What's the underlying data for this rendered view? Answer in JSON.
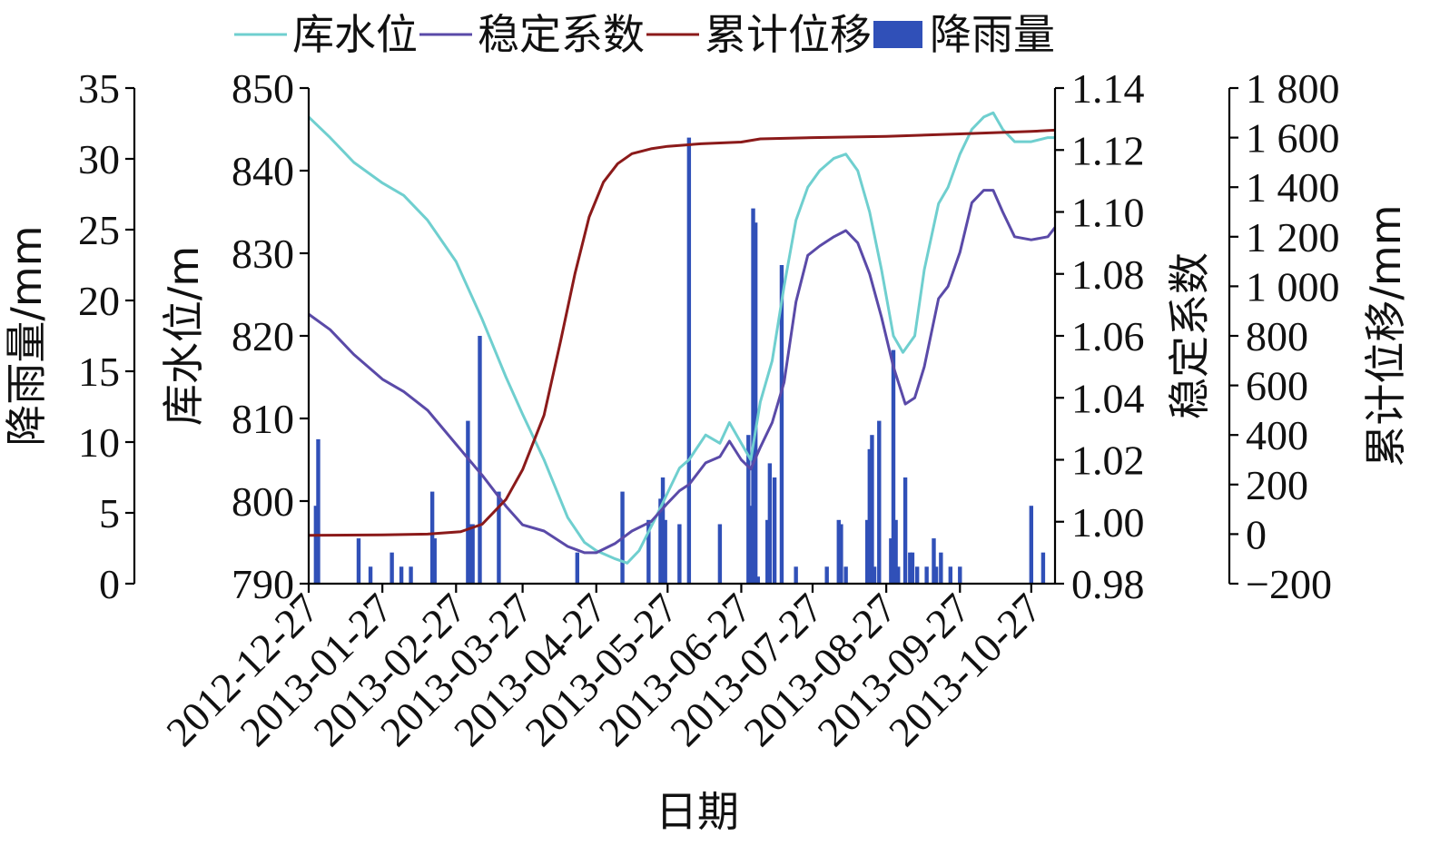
{
  "chart_data": {
    "type": "line",
    "xlabel": "日期",
    "x_ticks": [
      "2012-12-27",
      "2013-01-27",
      "2013-02-27",
      "2013-03-27",
      "2013-04-27",
      "2013-05-27",
      "2013-06-27",
      "2013-07-27",
      "2013-08-27",
      "2013-09-27",
      "2013-10-27"
    ],
    "x_range": [
      "2012-12-27",
      "2013-11-06"
    ],
    "legend_position": "top",
    "axes": {
      "rain": {
        "label": "降雨量/mm",
        "range": [
          0,
          35
        ],
        "ticks": [
          "0",
          "5",
          "10",
          "15",
          "20",
          "25",
          "30",
          "35"
        ],
        "tick_values": [
          0,
          5,
          10,
          15,
          20,
          25,
          30,
          35
        ]
      },
      "water": {
        "label": "库水位/m",
        "range": [
          790,
          850
        ],
        "ticks": [
          "790",
          "800",
          "810",
          "820",
          "830",
          "840",
          "850"
        ],
        "tick_values": [
          790,
          800,
          810,
          820,
          830,
          840,
          850
        ]
      },
      "stability": {
        "label": "稳定系数",
        "range": [
          0.98,
          1.14
        ],
        "ticks": [
          "0.98",
          "1.00",
          "1.02",
          "1.04",
          "1.06",
          "1.08",
          "1.10",
          "1.12",
          "1.14"
        ],
        "tick_values": [
          0.98,
          1.0,
          1.02,
          1.04,
          1.06,
          1.08,
          1.1,
          1.12,
          1.14
        ]
      },
      "displacement": {
        "label": "累计位移/mm",
        "range": [
          -200,
          1800
        ],
        "ticks": [
          "−200",
          "0",
          "200",
          "400",
          "600",
          "800",
          "1 000",
          "1 200",
          "1 400",
          "1 600",
          "1 800"
        ],
        "tick_values": [
          -200,
          0,
          200,
          400,
          600,
          800,
          1000,
          1200,
          1400,
          1600,
          1800
        ]
      }
    },
    "series": [
      {
        "name": "库水位",
        "axis": "water",
        "type": "line",
        "color": "#6fcfcf",
        "points": [
          [
            "2012-12-27",
            846.5
          ],
          [
            "2013-01-05",
            844
          ],
          [
            "2013-01-15",
            841
          ],
          [
            "2013-01-27",
            838.5
          ],
          [
            "2013-02-05",
            837
          ],
          [
            "2013-02-15",
            834
          ],
          [
            "2013-02-27",
            829
          ],
          [
            "2013-03-10",
            822
          ],
          [
            "2013-03-20",
            815
          ],
          [
            "2013-03-27",
            810.5
          ],
          [
            "2013-04-05",
            805
          ],
          [
            "2013-04-15",
            798
          ],
          [
            "2013-04-22",
            795
          ],
          [
            "2013-04-27",
            794
          ],
          [
            "2013-05-05",
            793
          ],
          [
            "2013-05-10",
            792.5
          ],
          [
            "2013-05-15",
            794
          ],
          [
            "2013-05-22",
            798
          ],
          [
            "2013-05-27",
            801
          ],
          [
            "2013-06-01",
            804
          ],
          [
            "2013-06-05",
            805
          ],
          [
            "2013-06-12",
            808
          ],
          [
            "2013-06-18",
            807
          ],
          [
            "2013-06-22",
            809.5
          ],
          [
            "2013-06-27",
            807
          ],
          [
            "2013-07-01",
            805
          ],
          [
            "2013-07-05",
            812
          ],
          [
            "2013-07-10",
            817
          ],
          [
            "2013-07-15",
            826
          ],
          [
            "2013-07-20",
            834
          ],
          [
            "2013-07-25",
            838
          ],
          [
            "2013-07-30",
            840
          ],
          [
            "2013-08-05",
            841.5
          ],
          [
            "2013-08-10",
            842
          ],
          [
            "2013-08-15",
            840
          ],
          [
            "2013-08-20",
            835
          ],
          [
            "2013-08-25",
            828
          ],
          [
            "2013-08-30",
            820
          ],
          [
            "2013-09-03",
            818
          ],
          [
            "2013-09-08",
            820
          ],
          [
            "2013-09-12",
            828
          ],
          [
            "2013-09-18",
            836
          ],
          [
            "2013-09-22",
            838
          ],
          [
            "2013-09-27",
            842
          ],
          [
            "2013-10-02",
            845
          ],
          [
            "2013-10-07",
            846.5
          ],
          [
            "2013-10-11",
            847
          ],
          [
            "2013-10-15",
            845
          ],
          [
            "2013-10-20",
            843.5
          ],
          [
            "2013-10-27",
            843.5
          ],
          [
            "2013-11-03",
            844
          ],
          [
            "2013-11-06",
            844
          ]
        ]
      },
      {
        "name": "稳定系数",
        "axis": "stability",
        "type": "line",
        "color": "#5a4aa8",
        "points": [
          [
            "2012-12-27",
            1.067
          ],
          [
            "2013-01-05",
            1.062
          ],
          [
            "2013-01-15",
            1.054
          ],
          [
            "2013-01-27",
            1.046
          ],
          [
            "2013-02-05",
            1.042
          ],
          [
            "2013-02-15",
            1.036
          ],
          [
            "2013-02-27",
            1.025
          ],
          [
            "2013-03-10",
            1.015
          ],
          [
            "2013-03-20",
            1.005
          ],
          [
            "2013-03-27",
            0.999
          ],
          [
            "2013-04-05",
            0.997
          ],
          [
            "2013-04-15",
            0.992
          ],
          [
            "2013-04-22",
            0.99
          ],
          [
            "2013-04-27",
            0.99
          ],
          [
            "2013-05-05",
            0.993
          ],
          [
            "2013-05-12",
            0.997
          ],
          [
            "2013-05-20",
            1.0
          ],
          [
            "2013-05-27",
            1.006
          ],
          [
            "2013-06-01",
            1.01
          ],
          [
            "2013-06-05",
            1.012
          ],
          [
            "2013-06-12",
            1.019
          ],
          [
            "2013-06-18",
            1.021
          ],
          [
            "2013-06-22",
            1.026
          ],
          [
            "2013-06-27",
            1.02
          ],
          [
            "2013-07-01",
            1.017
          ],
          [
            "2013-07-05",
            1.024
          ],
          [
            "2013-07-10",
            1.032
          ],
          [
            "2013-07-15",
            1.045
          ],
          [
            "2013-07-20",
            1.071
          ],
          [
            "2013-07-25",
            1.086
          ],
          [
            "2013-07-30",
            1.089
          ],
          [
            "2013-08-05",
            1.092
          ],
          [
            "2013-08-10",
            1.094
          ],
          [
            "2013-08-15",
            1.09
          ],
          [
            "2013-08-20",
            1.08
          ],
          [
            "2013-08-25",
            1.066
          ],
          [
            "2013-08-30",
            1.05
          ],
          [
            "2013-09-04",
            1.038
          ],
          [
            "2013-09-08",
            1.04
          ],
          [
            "2013-09-12",
            1.05
          ],
          [
            "2013-09-18",
            1.072
          ],
          [
            "2013-09-22",
            1.076
          ],
          [
            "2013-09-27",
            1.087
          ],
          [
            "2013-10-02",
            1.103
          ],
          [
            "2013-10-07",
            1.107
          ],
          [
            "2013-10-11",
            1.107
          ],
          [
            "2013-10-15",
            1.1
          ],
          [
            "2013-10-20",
            1.092
          ],
          [
            "2013-10-27",
            1.091
          ],
          [
            "2013-11-03",
            1.092
          ],
          [
            "2013-11-06",
            1.095
          ]
        ]
      },
      {
        "name": "累计位移",
        "axis": "displacement",
        "type": "line",
        "color": "#8b1a1a",
        "points": [
          [
            "2012-12-27",
            -5
          ],
          [
            "2013-01-27",
            -3
          ],
          [
            "2013-02-15",
            0
          ],
          [
            "2013-03-01",
            10
          ],
          [
            "2013-03-10",
            40
          ],
          [
            "2013-03-20",
            140
          ],
          [
            "2013-03-27",
            260
          ],
          [
            "2013-04-05",
            480
          ],
          [
            "2013-04-12",
            780
          ],
          [
            "2013-04-18",
            1050
          ],
          [
            "2013-04-24",
            1280
          ],
          [
            "2013-04-30",
            1420
          ],
          [
            "2013-05-06",
            1495
          ],
          [
            "2013-05-12",
            1535
          ],
          [
            "2013-05-20",
            1555
          ],
          [
            "2013-05-27",
            1565
          ],
          [
            "2013-06-10",
            1575
          ],
          [
            "2013-06-27",
            1582
          ],
          [
            "2013-07-05",
            1595
          ],
          [
            "2013-07-27",
            1600
          ],
          [
            "2013-08-27",
            1605
          ],
          [
            "2013-09-27",
            1615
          ],
          [
            "2013-10-27",
            1625
          ],
          [
            "2013-11-06",
            1630
          ]
        ]
      },
      {
        "name": "降雨量",
        "axis": "rain",
        "type": "bar",
        "color": "#3050b8",
        "points": [
          [
            "2012-12-30",
            5.5
          ],
          [
            "2012-12-31",
            10.2
          ],
          [
            "2013-01-17",
            3.2
          ],
          [
            "2013-01-22",
            1.2
          ],
          [
            "2013-01-31",
            2.2
          ],
          [
            "2013-02-04",
            1.2
          ],
          [
            "2013-02-08",
            1.2
          ],
          [
            "2013-02-17",
            6.5
          ],
          [
            "2013-02-18",
            3.2
          ],
          [
            "2013-03-04",
            11.5
          ],
          [
            "2013-03-05",
            4.2
          ],
          [
            "2013-03-06",
            4.2
          ],
          [
            "2013-03-09",
            17.5
          ],
          [
            "2013-03-17",
            6.5
          ],
          [
            "2013-04-19",
            2.2
          ],
          [
            "2013-05-08",
            6.5
          ],
          [
            "2013-05-19",
            4.5
          ],
          [
            "2013-05-24",
            6.0
          ],
          [
            "2013-05-25",
            7.5
          ],
          [
            "2013-05-26",
            4.5
          ],
          [
            "2013-06-01",
            4.2
          ],
          [
            "2013-06-05",
            31.5
          ],
          [
            "2013-06-18",
            4.2
          ],
          [
            "2013-06-30",
            10.5
          ],
          [
            "2013-07-01",
            5.5
          ],
          [
            "2013-07-02",
            26.5
          ],
          [
            "2013-07-03",
            25.5
          ],
          [
            "2013-07-04",
            0.5
          ],
          [
            "2013-07-08",
            4.5
          ],
          [
            "2013-07-09",
            8.5
          ],
          [
            "2013-07-11",
            7.5
          ],
          [
            "2013-07-14",
            22.5
          ],
          [
            "2013-07-20",
            1.2
          ],
          [
            "2013-08-02",
            1.2
          ],
          [
            "2013-08-07",
            4.5
          ],
          [
            "2013-08-08",
            4.2
          ],
          [
            "2013-08-10",
            1.2
          ],
          [
            "2013-08-19",
            4.5
          ],
          [
            "2013-08-20",
            9.5
          ],
          [
            "2013-08-21",
            10.5
          ],
          [
            "2013-08-22",
            1.2
          ],
          [
            "2013-08-24",
            11.5
          ],
          [
            "2013-08-29",
            3.2
          ],
          [
            "2013-08-30",
            16.5
          ],
          [
            "2013-08-31",
            4.5
          ],
          [
            "2013-09-01",
            1.2
          ],
          [
            "2013-09-04",
            7.5
          ],
          [
            "2013-09-06",
            2.2
          ],
          [
            "2013-09-07",
            2.2
          ],
          [
            "2013-09-09",
            1.2
          ],
          [
            "2013-09-13",
            1.2
          ],
          [
            "2013-09-16",
            3.2
          ],
          [
            "2013-09-17",
            1.2
          ],
          [
            "2013-09-19",
            2.2
          ],
          [
            "2013-09-23",
            1.2
          ],
          [
            "2013-09-27",
            1.2
          ],
          [
            "2013-10-27",
            5.5
          ],
          [
            "2013-11-01",
            2.2
          ]
        ]
      }
    ]
  }
}
